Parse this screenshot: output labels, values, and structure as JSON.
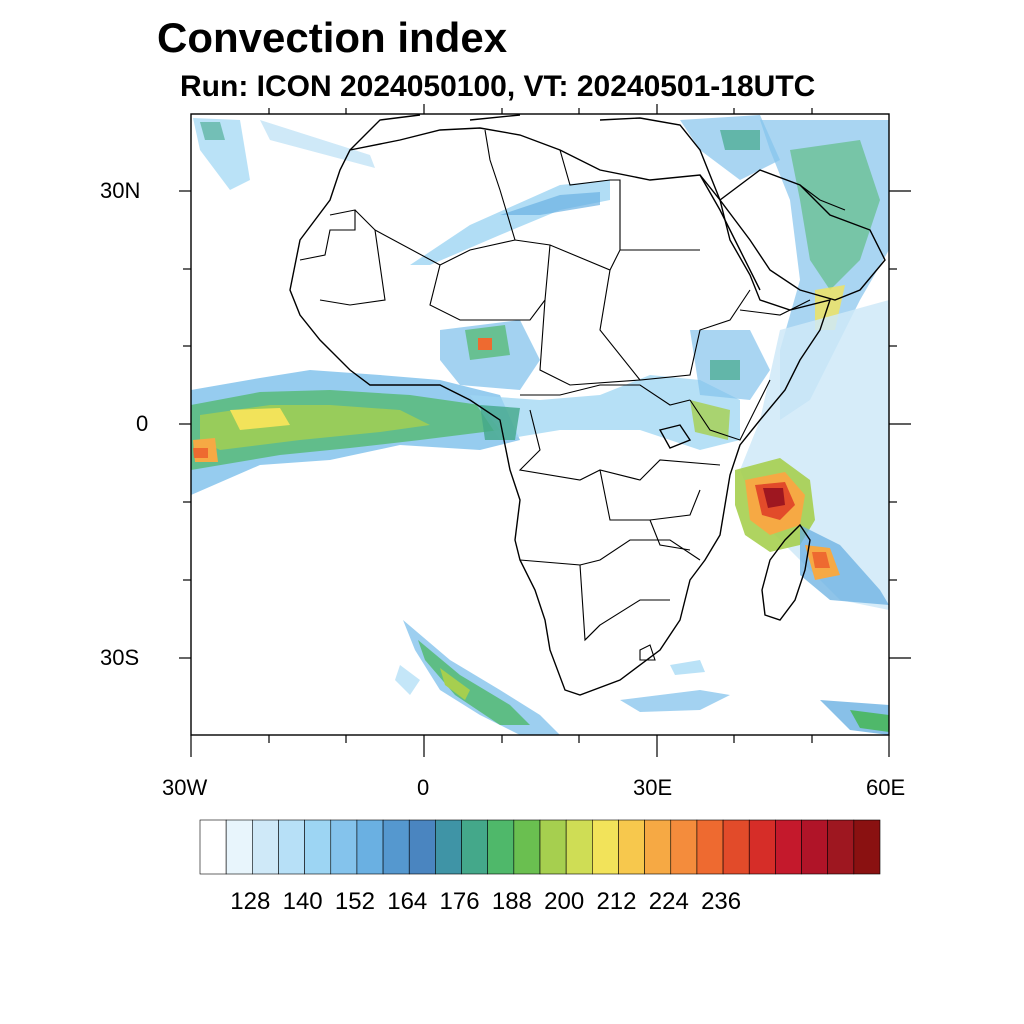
{
  "title": "Convection index",
  "subtitle": "Run: ICON 2024050100,  VT: 20240501-18UTC",
  "axes": {
    "lat_labels": [
      "30N",
      "0",
      "30S"
    ],
    "lon_labels": [
      "30W",
      "0",
      "30E",
      "60E"
    ]
  },
  "colorbar": {
    "colors": [
      "#ffffff",
      "#e8f5fc",
      "#cfe9f8",
      "#b7e0f7",
      "#9dd5f3",
      "#84c3ec",
      "#6ab0e2",
      "#5598cf",
      "#4a85c0",
      "#3f94a6",
      "#44a88a",
      "#4fb86a",
      "#6abf50",
      "#a6cf4f",
      "#cfdd55",
      "#f2e35a",
      "#f7c84d",
      "#f6a944",
      "#f48c3c",
      "#ee6a30",
      "#e24b2a",
      "#d62d28",
      "#c4192c",
      "#b01428",
      "#9e1720",
      "#8a1111"
    ],
    "labels": [
      "128",
      "140",
      "152",
      "164",
      "176",
      "188",
      "200",
      "212",
      "224",
      "236"
    ]
  }
}
